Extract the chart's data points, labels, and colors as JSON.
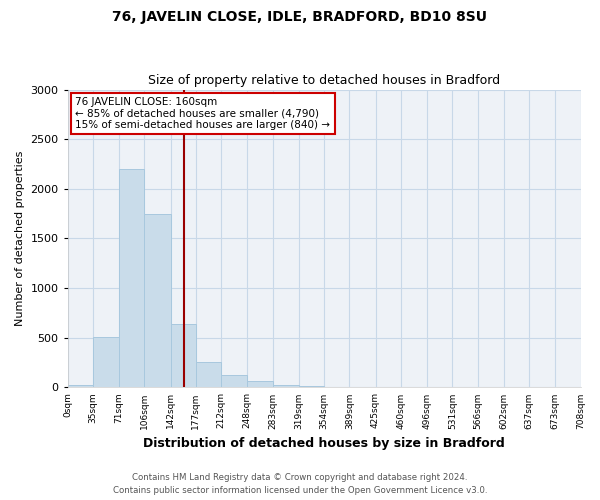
{
  "title": "76, JAVELIN CLOSE, IDLE, BRADFORD, BD10 8SU",
  "subtitle": "Size of property relative to detached houses in Bradford",
  "xlabel": "Distribution of detached houses by size in Bradford",
  "ylabel": "Number of detached properties",
  "bin_edges": [
    0,
    35,
    71,
    106,
    142,
    177,
    212,
    248,
    283,
    319,
    354,
    389,
    425,
    460,
    496,
    531,
    566,
    602,
    637,
    673,
    708
  ],
  "bar_heights": [
    20,
    510,
    2200,
    1750,
    640,
    260,
    130,
    60,
    25,
    10,
    5,
    2,
    0,
    0,
    0,
    0,
    0,
    0,
    0,
    0
  ],
  "bar_color": "#c9dcea",
  "bar_edge_color": "#a8c8de",
  "vline_x": 160,
  "vline_color": "#990000",
  "ylim": [
    0,
    3000
  ],
  "yticks": [
    0,
    500,
    1000,
    1500,
    2000,
    2500,
    3000
  ],
  "annotation_title": "76 JAVELIN CLOSE: 160sqm",
  "annotation_line1": "← 85% of detached houses are smaller (4,790)",
  "annotation_line2": "15% of semi-detached houses are larger (840) →",
  "annotation_box_color": "#ffffff",
  "annotation_box_edge": "#cc0000",
  "footer_line1": "Contains HM Land Registry data © Crown copyright and database right 2024.",
  "footer_line2": "Contains public sector information licensed under the Open Government Licence v3.0.",
  "tick_labels": [
    "0sqm",
    "35sqm",
    "71sqm",
    "106sqm",
    "142sqm",
    "177sqm",
    "212sqm",
    "248sqm",
    "283sqm",
    "319sqm",
    "354sqm",
    "389sqm",
    "425sqm",
    "460sqm",
    "496sqm",
    "531sqm",
    "566sqm",
    "602sqm",
    "637sqm",
    "673sqm",
    "708sqm"
  ],
  "bg_color": "#ffffff",
  "plot_bg_color": "#eef2f7",
  "grid_color": "#c8d8e8"
}
